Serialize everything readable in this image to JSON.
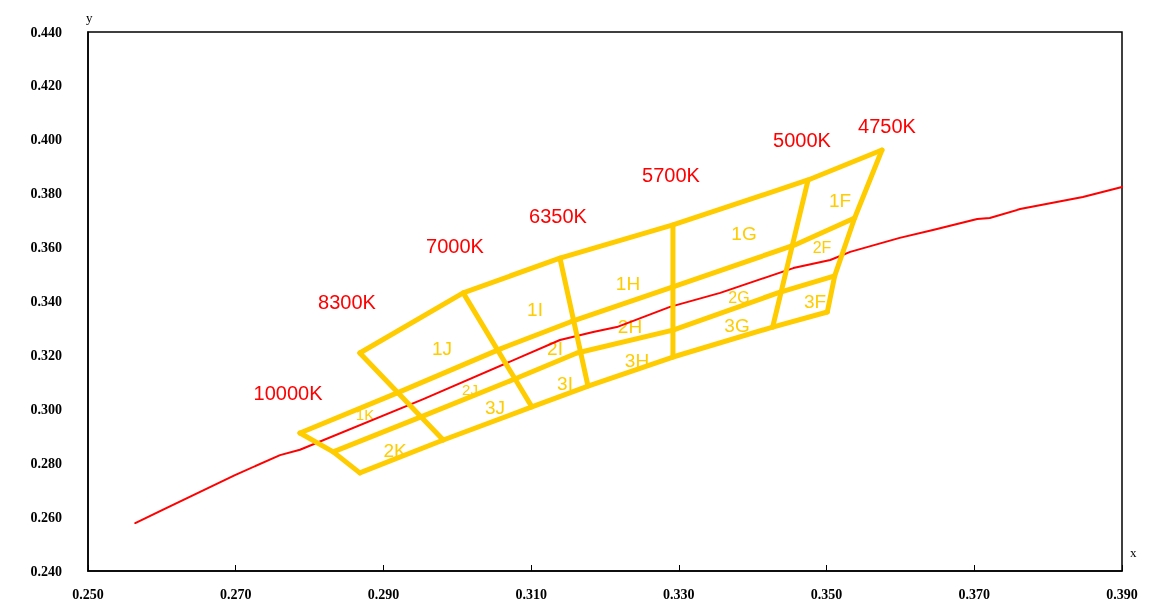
{
  "chart_data": {
    "type": "line",
    "xlabel": "x",
    "ylabel": "y",
    "xlim": [
      0.25,
      0.39
    ],
    "ylim": [
      0.24,
      0.44
    ],
    "xticks": [
      {
        "value": 0.25,
        "label": "0.250"
      },
      {
        "value": 0.27,
        "label": "0.270"
      },
      {
        "value": 0.29,
        "label": "0.290"
      },
      {
        "value": 0.31,
        "label": "0.310"
      },
      {
        "value": 0.33,
        "label": "0.330"
      },
      {
        "value": 0.35,
        "label": "0.350"
      },
      {
        "value": 0.37,
        "label": "0.370"
      },
      {
        "value": 0.39,
        "label": "0.390"
      }
    ],
    "yticks": [
      {
        "value": 0.24,
        "label": "0.240"
      },
      {
        "value": 0.26,
        "label": "0.260"
      },
      {
        "value": 0.28,
        "label": "0.280"
      },
      {
        "value": 0.3,
        "label": "0.300"
      },
      {
        "value": 0.32,
        "label": "0.320"
      },
      {
        "value": 0.34,
        "label": "0.340"
      },
      {
        "value": 0.36,
        "label": "0.360"
      },
      {
        "value": 0.38,
        "label": "0.380"
      },
      {
        "value": 0.4,
        "label": "0.400"
      },
      {
        "value": 0.42,
        "label": "0.420"
      },
      {
        "value": 0.44,
        "label": "0.440"
      }
    ],
    "grid": false,
    "marker": "none",
    "line_style": "solid",
    "series": [
      {
        "color": "#ff0000",
        "x": [
          0.2564,
          0.2699,
          0.276,
          0.2787,
          0.2954,
          0.3139,
          0.3184,
          0.3216,
          0.3288,
          0.3356,
          0.3455,
          0.3505,
          0.3532,
          0.3599,
          0.3644,
          0.3704,
          0.3721,
          0.3762,
          0.3847,
          0.39
        ],
        "values": [
          0.2578,
          0.2756,
          0.283,
          0.285,
          0.3038,
          0.3257,
          0.3287,
          0.3305,
          0.338,
          0.3432,
          0.3524,
          0.3554,
          0.3584,
          0.3636,
          0.3665,
          0.3706,
          0.371,
          0.3743,
          0.3788,
          0.3825
        ]
      },
      {
        "color": "#ffcc00",
        "x": [
          0.2868,
          0.3008,
          0.3139,
          0.3292,
          0.3475,
          0.3575
        ],
        "values": [
          0.3209,
          0.3432,
          0.3561,
          0.3684,
          0.3851,
          0.3962
        ]
      },
      {
        "color": "#ffcc00",
        "x": [
          0.2787,
          0.2918,
          0.3061,
          0.3153,
          0.3292,
          0.3457,
          0.3538
        ],
        "values": [
          0.2912,
          0.306,
          0.3227,
          0.3324,
          0.3454,
          0.361,
          0.371
        ]
      },
      {
        "color": "#ffcc00",
        "x": [
          0.2832,
          0.295,
          0.3081,
          0.3162,
          0.3292,
          0.3434,
          0.3511
        ],
        "values": [
          0.2842,
          0.2971,
          0.3116,
          0.3209,
          0.3294,
          0.3432,
          0.3495
        ]
      },
      {
        "color": "#ffcc00",
        "x": [
          0.2868,
          0.2981,
          0.3101,
          0.3177,
          0.3292,
          0.3427,
          0.3501
        ],
        "values": [
          0.2764,
          0.2886,
          0.3009,
          0.3086,
          0.3194,
          0.3305,
          0.3361
        ]
      },
      {
        "color": "#ffcc00",
        "x": [
          0.2787,
          0.2832,
          0.2868
        ],
        "values": [
          0.2912,
          0.2842,
          0.2764
        ]
      },
      {
        "color": "#ffcc00",
        "x": [
          0.3575,
          0.3538,
          0.3511,
          0.3501
        ],
        "values": [
          0.3962,
          0.371,
          0.3495,
          0.3361
        ]
      },
      {
        "color": "#ffcc00",
        "x": [
          0.2868,
          0.2981
        ],
        "values": [
          0.3209,
          0.2886
        ]
      },
      {
        "color": "#ffcc00",
        "x": [
          0.3008,
          0.3101
        ],
        "values": [
          0.3432,
          0.3009
        ]
      },
      {
        "color": "#ffcc00",
        "x": [
          0.3139,
          0.3177
        ],
        "values": [
          0.3561,
          0.3086
        ]
      },
      {
        "color": "#ffcc00",
        "x": [
          0.3292,
          0.3292
        ],
        "values": [
          0.3684,
          0.3194
        ]
      },
      {
        "color": "#ffcc00",
        "x": [
          0.3475,
          0.3427
        ],
        "values": [
          0.3851,
          0.3305
        ]
      }
    ],
    "annotations": [
      "10000K",
      "8300K",
      "7000K",
      "6350K",
      "5700K",
      "5000K",
      "4750K",
      "1K",
      "2K",
      "1J",
      "2J",
      "3J",
      "1I",
      "2I",
      "3I",
      "1H",
      "2H",
      "3H",
      "1G",
      "2G",
      "3G",
      "1F",
      "2F",
      "3F"
    ]
  }
}
